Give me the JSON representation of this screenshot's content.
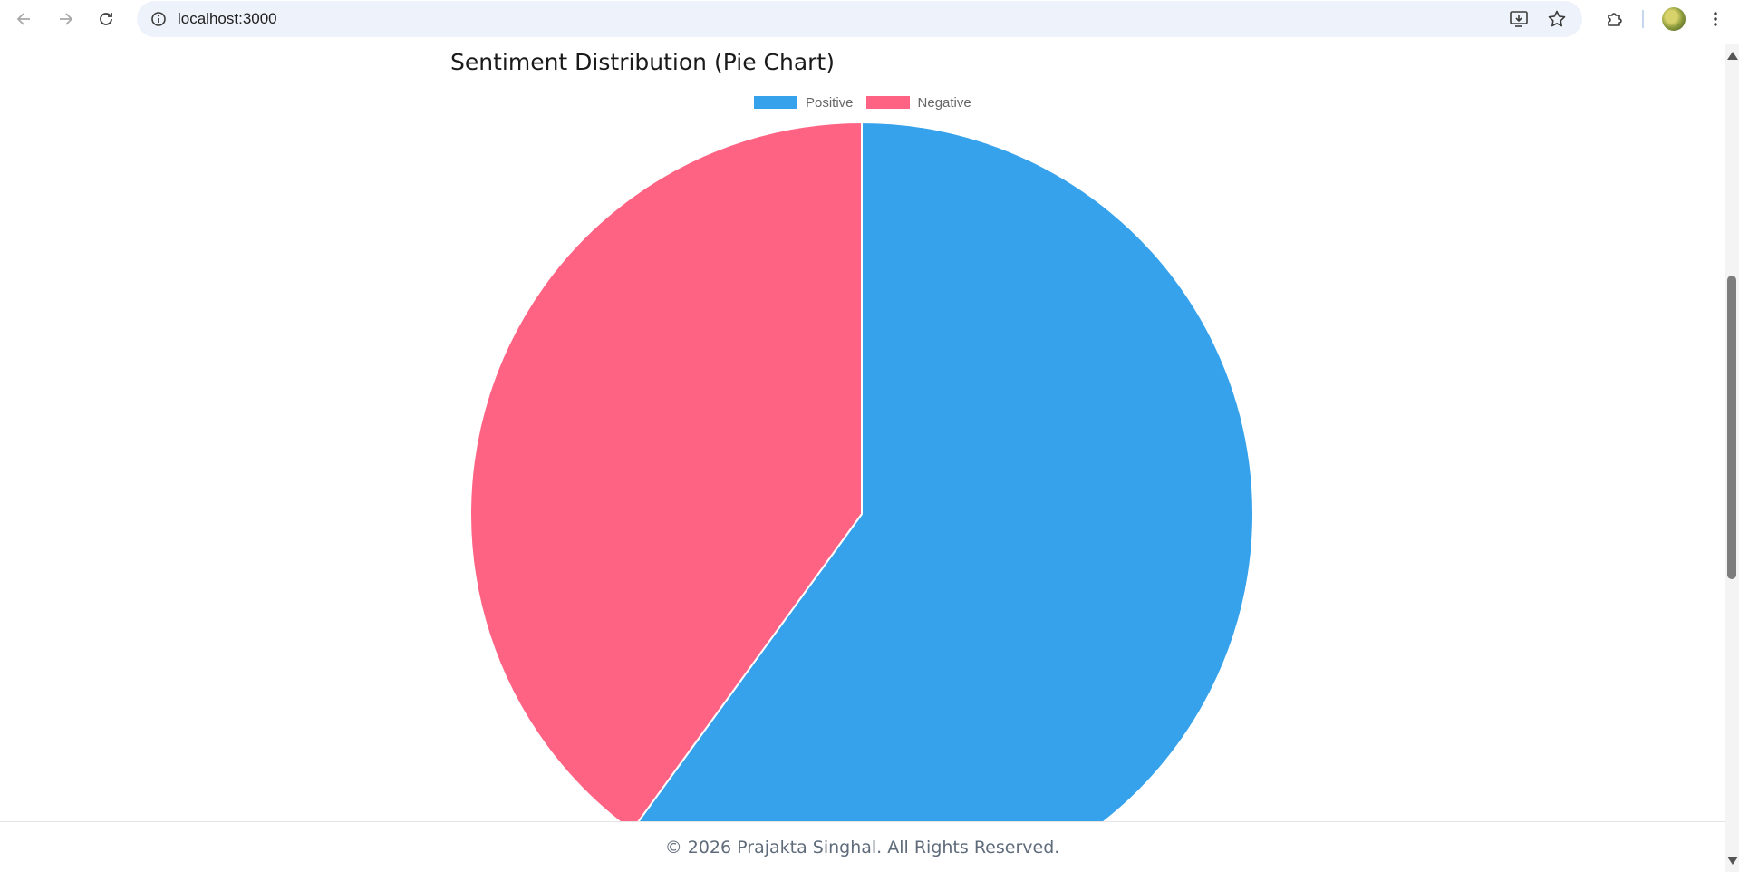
{
  "browser": {
    "url": "localhost:3000",
    "icons": {
      "back": "arrow-left-icon",
      "forward": "arrow-right-icon",
      "reload": "reload-icon",
      "info": "info-icon",
      "install": "install-app-icon",
      "bookmark": "star-icon",
      "extensions": "puzzle-icon",
      "menu": "kebab-menu-icon"
    }
  },
  "page": {
    "title": "Sentiment Distribution (Pie Chart)"
  },
  "chart_data": {
    "type": "pie",
    "labels": [
      "Positive",
      "Negative"
    ],
    "values": [
      60,
      40
    ],
    "colors": [
      "#36A2EB",
      "#FF6384"
    ],
    "legend_position": "top"
  },
  "footer": {
    "text": "© 2026 Prajakta Singhal. All Rights Reserved."
  }
}
